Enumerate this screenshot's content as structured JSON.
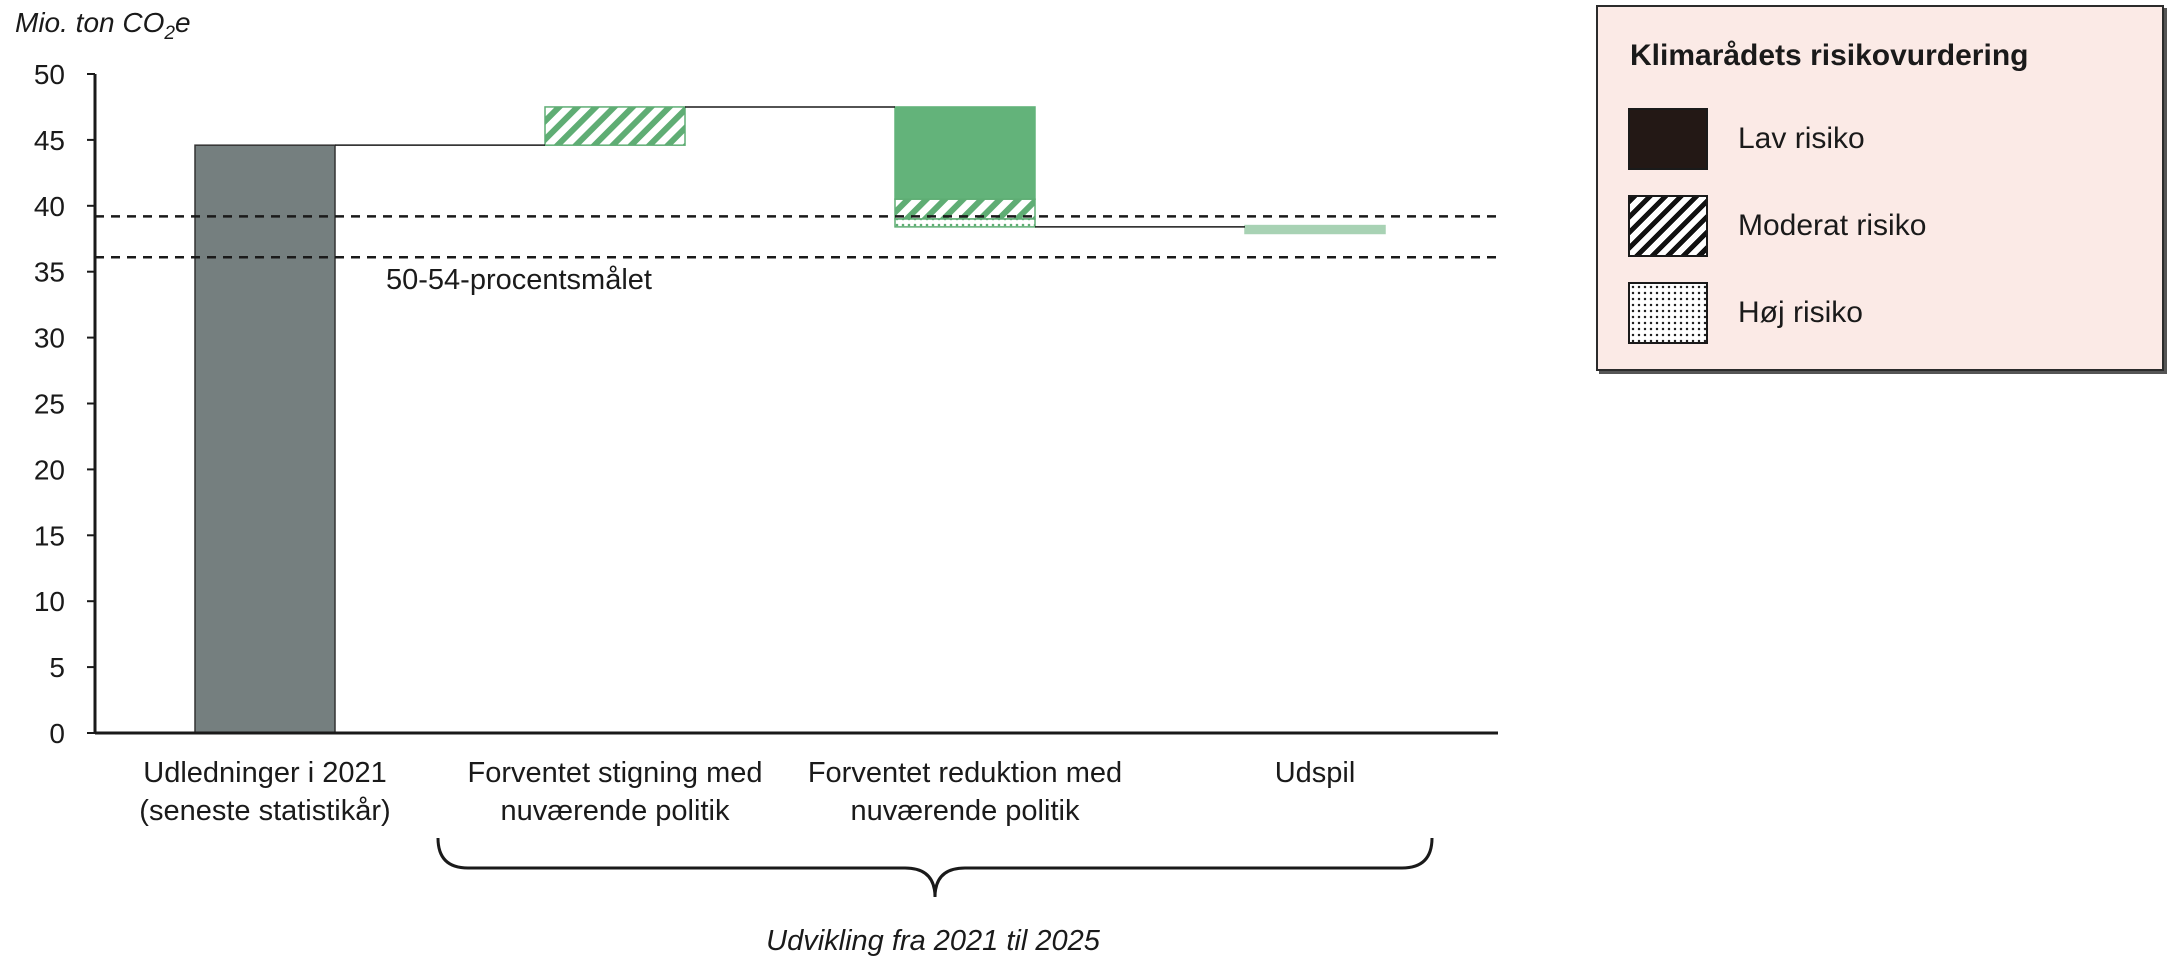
{
  "chart_data": {
    "type": "bar",
    "subtype": "waterfall",
    "ylabel_prefix": "Mio. ton CO",
    "ylabel_sub": "2",
    "ylabel_suffix": "e",
    "ylim": [
      0,
      50
    ],
    "yticks": [
      "0",
      "5",
      "10",
      "15",
      "20",
      "25",
      "30",
      "35",
      "40",
      "45",
      "50"
    ],
    "categories": [
      [
        "Udledninger i 2021",
        "(seneste statistikår)"
      ],
      [
        "Forventet stigning med",
        "nuværende politik"
      ],
      [
        "Forventet reduktion med",
        "nuværende politik"
      ],
      [
        "Udspil"
      ]
    ],
    "segments": [
      {
        "category": 0,
        "from": 0,
        "to": 44.6,
        "style": "solid",
        "color": "#757f7f"
      },
      {
        "category": 1,
        "from": 44.6,
        "to": 47.5,
        "style": "hatch",
        "color": "#5fad74"
      },
      {
        "category": 2,
        "from": 40.5,
        "to": 47.5,
        "style": "solid",
        "color": "#63b37a"
      },
      {
        "category": 2,
        "from": 39.0,
        "to": 40.5,
        "style": "hatch",
        "color": "#5fad74"
      },
      {
        "category": 2,
        "from": 38.4,
        "to": 39.0,
        "style": "dots",
        "color": "#5fad74"
      },
      {
        "category": 3,
        "from": 37.9,
        "to": 38.5,
        "style": "solid",
        "color": "#a8d2b4"
      }
    ],
    "connectors": [
      {
        "from_category": 0,
        "to_category": 1,
        "y": 44.6
      },
      {
        "from_category": 1,
        "to_category": 2,
        "y": 47.5
      },
      {
        "from_category": 2,
        "to_category": 3,
        "y": 38.4
      }
    ],
    "reference_lines": [
      39.2,
      36.1
    ],
    "reference_label": "50-54-procentsmålet",
    "brace_label": "Udvikling fra 2021 til 2025",
    "grid": false
  },
  "legend": {
    "title": "Klimarådets risikovurdering",
    "items": [
      {
        "label": "Lav risiko",
        "pattern": "solid"
      },
      {
        "label": "Moderat risiko",
        "pattern": "hatch"
      },
      {
        "label": "Høj risiko",
        "pattern": "dots"
      }
    ]
  }
}
